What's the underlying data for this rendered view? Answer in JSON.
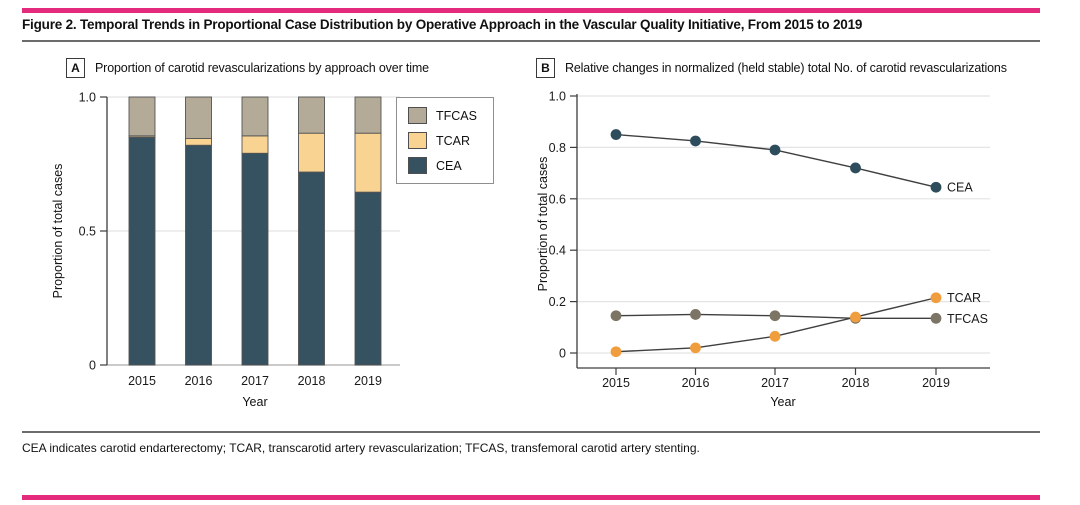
{
  "figure": {
    "title": "Figure 2. Temporal Trends in Proportional Case Distribution by Operative Approach in the Vascular Quality Initiative, From 2015 to 2019",
    "footnote": "CEA indicates carotid endarterectomy; TCAR, transcarotid artery revascularization; TFCAS, transfemoral carotid artery stenting.",
    "accent_color": "#e42a7d"
  },
  "panels": [
    {
      "tag": "A",
      "header": "Proportion of carotid revascularizations by approach over time"
    },
    {
      "tag": "B",
      "header": "Relative changes in normalized (held stable) total No. of carotid revascularizations"
    }
  ],
  "chart_data": [
    {
      "type": "bar",
      "subtype": "stacked",
      "title": "Proportion of carotid revascularizations by approach over time",
      "categories": [
        "2015",
        "2016",
        "2017",
        "2018",
        "2019"
      ],
      "series": [
        {
          "name": "CEA",
          "color": "#36515f",
          "values": [
            0.85,
            0.82,
            0.79,
            0.72,
            0.645
          ]
        },
        {
          "name": "TCAR",
          "color": "#f8d392",
          "values": [
            0.005,
            0.025,
            0.065,
            0.145,
            0.22
          ]
        },
        {
          "name": "TFCAS",
          "color": "#b3aa98",
          "values": [
            0.145,
            0.155,
            0.145,
            0.135,
            0.135
          ]
        }
      ],
      "xlabel": "Year",
      "ylabel": "Proportion of total cases",
      "ylim": [
        0,
        1.0
      ],
      "yticks": [
        0,
        0.5,
        1.0
      ],
      "ytick_labels": [
        "0",
        "0.5",
        "1.0"
      ],
      "grid": true,
      "legend": {
        "position": "top-right",
        "order": [
          "TFCAS",
          "TCAR",
          "CEA"
        ]
      }
    },
    {
      "type": "line",
      "title": "Relative changes in normalized (held stable) total No. of carotid revascularizations",
      "x": [
        "2015",
        "2016",
        "2017",
        "2018",
        "2019"
      ],
      "series": [
        {
          "name": "CEA",
          "marker_color": "#2e4d5c",
          "values": [
            0.85,
            0.825,
            0.79,
            0.72,
            0.645
          ]
        },
        {
          "name": "TCAR",
          "marker_color": "#f09e3d",
          "values": [
            0.005,
            0.02,
            0.065,
            0.14,
            0.215
          ]
        },
        {
          "name": "TFCAS",
          "marker_color": "#7c7565",
          "values": [
            0.145,
            0.15,
            0.145,
            0.135,
            0.135
          ]
        }
      ],
      "line_color": "#3f3f3f",
      "xlabel": "Year",
      "ylabel": "Proportion of total cases",
      "ylim": [
        0,
        1.0
      ],
      "yticks": [
        0,
        0.2,
        0.4,
        0.6,
        0.8,
        1.0
      ],
      "ytick_labels": [
        "0",
        "0.2",
        "0.4",
        "0.6",
        "0.8",
        "1.0"
      ],
      "grid": true,
      "end_labels": true,
      "legend": {
        "position": "none"
      }
    }
  ]
}
